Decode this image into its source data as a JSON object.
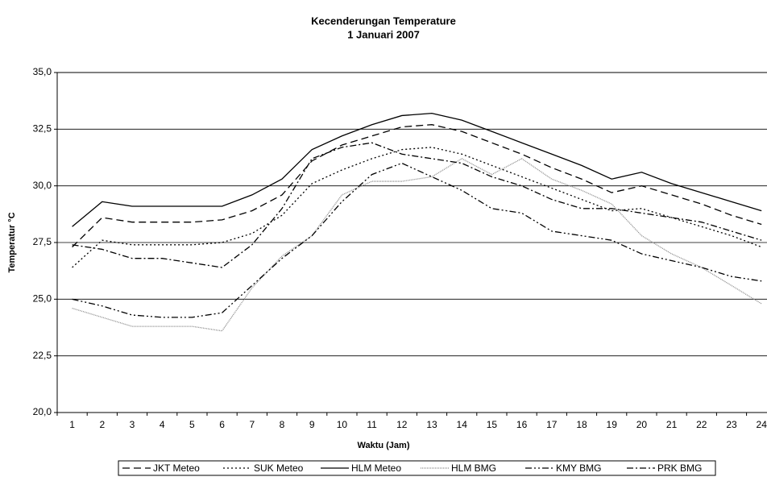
{
  "chart_data": {
    "type": "line",
    "title": "Kecenderungan Temperature",
    "subtitle": "1 Januari 2007",
    "xlabel": "Waktu (Jam)",
    "ylabel": "Temperatur °C",
    "categories": [
      "1",
      "2",
      "3",
      "4",
      "5",
      "6",
      "7",
      "8",
      "9",
      "10",
      "11",
      "12",
      "13",
      "14",
      "15",
      "16",
      "17",
      "18",
      "19",
      "20",
      "21",
      "22",
      "23",
      "24"
    ],
    "ylim": [
      20,
      35
    ],
    "yticks": [
      {
        "value": 20,
        "label": "20,0"
      },
      {
        "value": 22.5,
        "label": "22,5"
      },
      {
        "value": 25,
        "label": "25,0"
      },
      {
        "value": 27.5,
        "label": "27,5"
      },
      {
        "value": 30,
        "label": "30,0"
      },
      {
        "value": 32.5,
        "label": "32,5"
      },
      {
        "value": 35,
        "label": "35,0"
      }
    ],
    "grid": true,
    "legend": "bottom",
    "series": [
      {
        "name": "JKT Meteo",
        "color": "#000000",
        "dash": "9 5",
        "values": [
          27.3,
          28.6,
          28.4,
          28.4,
          28.4,
          28.5,
          28.9,
          29.6,
          31.1,
          31.8,
          32.2,
          32.6,
          32.7,
          32.4,
          31.9,
          31.4,
          30.8,
          30.3,
          29.7,
          30.0,
          29.6,
          29.2,
          28.7,
          28.3
        ]
      },
      {
        "name": "SUK Meteo",
        "color": "#000000",
        "dash": "2 3",
        "values": [
          26.4,
          27.6,
          27.4,
          27.4,
          27.4,
          27.5,
          27.9,
          28.7,
          30.1,
          30.7,
          31.2,
          31.6,
          31.7,
          31.4,
          30.9,
          30.4,
          29.9,
          29.4,
          28.9,
          29.0,
          28.6,
          28.2,
          27.8,
          27.3
        ]
      },
      {
        "name": "HLM Meteo",
        "color": "#000000",
        "dash": "none",
        "values": [
          28.2,
          29.3,
          29.1,
          29.1,
          29.1,
          29.1,
          29.6,
          30.3,
          31.6,
          32.2,
          32.7,
          33.1,
          33.2,
          32.9,
          32.4,
          31.9,
          31.4,
          30.9,
          30.3,
          30.6,
          30.1,
          29.7,
          29.3,
          28.9
        ]
      },
      {
        "name": "HLM BMG",
        "color": "#8a8a8a",
        "dash": "1 1",
        "values": [
          24.6,
          24.2,
          23.8,
          23.8,
          23.8,
          23.6,
          25.5,
          26.9,
          27.8,
          29.6,
          30.2,
          30.2,
          30.4,
          31.2,
          30.5,
          31.2,
          30.3,
          29.8,
          29.2,
          27.8,
          27.0,
          26.4,
          25.6,
          24.8
        ]
      },
      {
        "name": "KMY BMG",
        "color": "#000000",
        "dash": "8 3 2 3 2 3",
        "values": [
          25.0,
          24.7,
          24.3,
          24.2,
          24.2,
          24.4,
          25.6,
          26.8,
          27.8,
          29.3,
          30.5,
          31.0,
          30.4,
          29.8,
          29.0,
          28.8,
          28.0,
          27.8,
          27.6,
          27.0,
          26.7,
          26.4,
          26.0,
          25.8
        ]
      },
      {
        "name": "PRK BMG",
        "color": "#000000",
        "dash": "8 3 2 3",
        "values": [
          27.4,
          27.2,
          26.8,
          26.8,
          26.6,
          26.4,
          27.4,
          29.0,
          31.2,
          31.7,
          31.9,
          31.4,
          31.2,
          31.0,
          30.4,
          30.0,
          29.4,
          29.0,
          29.0,
          28.8,
          28.6,
          28.4,
          28.0,
          27.6
        ]
      }
    ]
  }
}
